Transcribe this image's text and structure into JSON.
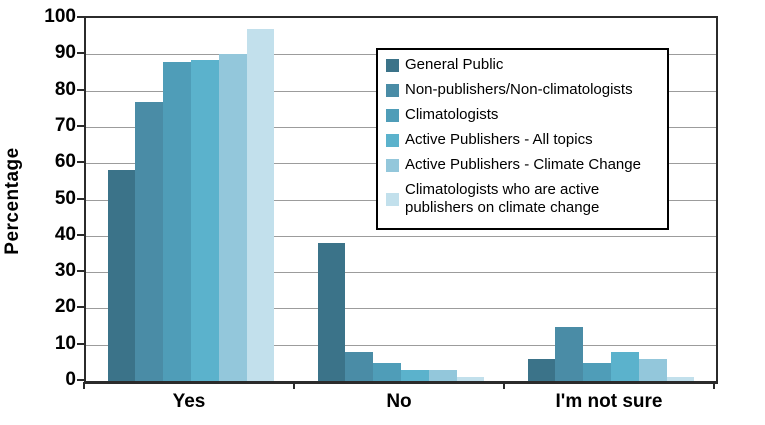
{
  "chart_data": {
    "type": "bar",
    "title": "",
    "categories": [
      "Yes",
      "No",
      "I'm not sure"
    ],
    "series": [
      {
        "name": "General Public",
        "color": "#3B7389",
        "values": [
          58,
          38,
          6
        ]
      },
      {
        "name": "Non-publishers/Non-climatologists",
        "color": "#4A8CA6",
        "values": [
          77,
          8,
          15
        ]
      },
      {
        "name": "Climatologists",
        "color": "#4F9DB8",
        "values": [
          88,
          5,
          5
        ]
      },
      {
        "name": "Active Publishers - All topics",
        "color": "#5BB2CC",
        "values": [
          88.5,
          3,
          8
        ]
      },
      {
        "name": "Active Publishers - Climate Change",
        "color": "#93C7DB",
        "values": [
          90,
          3,
          6
        ]
      },
      {
        "name": "Climatologists who are active publishers on climate change",
        "color": "#C2E0EC",
        "values": [
          97,
          1,
          1
        ]
      }
    ],
    "xlabel": "",
    "ylabel": "Percentage",
    "ylim": [
      0,
      100
    ],
    "yticks": [
      0,
      10,
      20,
      30,
      40,
      50,
      60,
      70,
      80,
      90,
      100
    ],
    "grid": true,
    "legend_position": "top-right-inside"
  },
  "colors": {
    "axis": "#2b2b2b",
    "gridline": "#9c9c9c",
    "background": "#ffffff",
    "legend_border": "#000000",
    "text": "#000000"
  }
}
